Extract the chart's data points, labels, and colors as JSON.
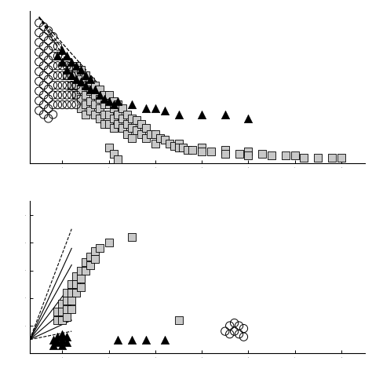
{
  "top_panel": {
    "circles_x": [
      1.5,
      1.5,
      1.5,
      1.5,
      1.5,
      1.5,
      1.5,
      1.5,
      1.5,
      1.5,
      1.6,
      1.6,
      1.6,
      1.6,
      1.6,
      1.6,
      1.6,
      1.6,
      1.6,
      1.6,
      1.7,
      1.7,
      1.7,
      1.7,
      1.7,
      1.7,
      1.7,
      1.7,
      1.7,
      1.7,
      1.8,
      1.8,
      1.8,
      1.8,
      1.8,
      1.8,
      1.8,
      1.8,
      1.8,
      1.9,
      1.9,
      1.9,
      1.9,
      1.9,
      1.9,
      1.9,
      2.0,
      2.0,
      2.0,
      2.0,
      2.0,
      2.0,
      2.1,
      2.1,
      2.1,
      2.1,
      2.1,
      2.2,
      2.2,
      2.2,
      2.2,
      2.3,
      2.3,
      2.3
    ],
    "circles_y": [
      9.2,
      8.7,
      8.2,
      7.7,
      7.2,
      6.7,
      6.2,
      5.7,
      5.2,
      4.7,
      9.0,
      8.5,
      8.0,
      7.5,
      7.0,
      6.5,
      6.0,
      5.5,
      5.0,
      4.5,
      8.8,
      8.3,
      7.8,
      7.3,
      6.8,
      6.3,
      5.8,
      5.3,
      4.8,
      4.3,
      8.5,
      8.0,
      7.5,
      7.0,
      6.5,
      6.0,
      5.5,
      5.0,
      4.5,
      8.0,
      7.5,
      7.0,
      6.5,
      6.0,
      5.5,
      5.0,
      7.5,
      7.0,
      6.5,
      6.0,
      5.5,
      5.0,
      7.0,
      6.5,
      6.0,
      5.5,
      5.0,
      6.5,
      6.0,
      5.5,
      5.0,
      6.0,
      5.5,
      5.0
    ],
    "triangles_x": [
      1.9,
      2.0,
      2.0,
      2.1,
      2.1,
      2.2,
      2.2,
      2.3,
      2.3,
      2.4,
      2.4,
      2.5,
      2.5,
      2.6,
      2.6,
      2.7,
      2.8,
      2.9,
      3.0,
      3.1,
      3.2,
      3.5,
      3.8,
      4.0,
      4.2,
      4.5,
      5.0,
      5.5,
      6.0
    ],
    "triangles_y": [
      7.5,
      7.8,
      7.2,
      7.5,
      6.8,
      7.2,
      6.5,
      7.0,
      6.3,
      6.8,
      6.2,
      6.5,
      6.0,
      6.3,
      5.8,
      5.8,
      5.5,
      5.3,
      5.2,
      5.0,
      5.2,
      5.0,
      4.8,
      4.8,
      4.7,
      4.5,
      4.5,
      4.5,
      4.3
    ],
    "squares_x": [
      2.1,
      2.1,
      2.2,
      2.2,
      2.2,
      2.3,
      2.3,
      2.3,
      2.3,
      2.4,
      2.4,
      2.4,
      2.4,
      2.4,
      2.5,
      2.5,
      2.5,
      2.5,
      2.5,
      2.6,
      2.6,
      2.6,
      2.6,
      2.7,
      2.7,
      2.7,
      2.7,
      2.8,
      2.8,
      2.8,
      2.8,
      2.9,
      2.9,
      2.9,
      2.9,
      3.0,
      3.0,
      3.0,
      3.0,
      3.1,
      3.1,
      3.1,
      3.1,
      3.2,
      3.2,
      3.2,
      3.3,
      3.3,
      3.3,
      3.4,
      3.4,
      3.4,
      3.5,
      3.5,
      3.5,
      3.6,
      3.6,
      3.7,
      3.7,
      3.8,
      3.8,
      3.9,
      4.0,
      4.0,
      4.1,
      4.2,
      4.3,
      4.4,
      4.5,
      4.5,
      4.6,
      4.7,
      4.8,
      5.0,
      5.0,
      5.2,
      5.5,
      5.5,
      5.8,
      6.0,
      6.0,
      6.3,
      6.5,
      6.8,
      7.0,
      7.2,
      7.5,
      7.8,
      8.0,
      3.0,
      3.1,
      3.2
    ],
    "squares_y": [
      7.2,
      6.5,
      7.0,
      6.5,
      6.0,
      7.0,
      6.5,
      6.0,
      5.5,
      6.8,
      6.3,
      5.8,
      5.3,
      4.8,
      6.5,
      6.0,
      5.5,
      5.0,
      4.5,
      6.2,
      5.7,
      5.2,
      4.7,
      6.0,
      5.5,
      5.0,
      4.5,
      5.8,
      5.3,
      4.8,
      4.3,
      5.5,
      5.0,
      4.5,
      4.0,
      5.5,
      5.0,
      4.5,
      4.0,
      5.2,
      4.8,
      4.3,
      3.8,
      5.0,
      4.5,
      4.0,
      4.8,
      4.3,
      3.8,
      4.5,
      4.0,
      3.5,
      4.3,
      3.8,
      3.3,
      4.2,
      3.7,
      4.0,
      3.5,
      3.8,
      3.3,
      3.5,
      3.5,
      3.0,
      3.3,
      3.2,
      3.0,
      2.9,
      3.0,
      2.8,
      2.8,
      2.7,
      2.7,
      2.8,
      2.6,
      2.6,
      2.7,
      2.5,
      2.5,
      2.6,
      2.4,
      2.5,
      2.4,
      2.4,
      2.4,
      2.3,
      2.3,
      2.3,
      2.3,
      2.8,
      2.5,
      2.2
    ],
    "dashed_lines": [
      {
        "x": [
          1.5,
          2.8
        ],
        "y": [
          9.5,
          6.0
        ]
      },
      {
        "x": [
          1.5,
          2.8
        ],
        "y": [
          9.5,
          5.2
        ]
      },
      {
        "x": [
          1.5,
          2.8
        ],
        "y": [
          9.5,
          4.5
        ]
      }
    ],
    "xlim": [
      1.3,
      8.5
    ],
    "ylim": [
      2.0,
      9.8
    ],
    "xticks": [
      1,
      2,
      3,
      4,
      5,
      6,
      7,
      8,
      9
    ],
    "yticks": []
  },
  "bottom_panel": {
    "circles_x": [
      5.5,
      5.6,
      5.6,
      5.7,
      5.7,
      5.8,
      5.8,
      5.9,
      5.9
    ],
    "circles_y": [
      1.8,
      2.0,
      1.7,
      2.1,
      1.8,
      2.0,
      1.7,
      1.9,
      1.6
    ],
    "triangles_x": [
      1.8,
      1.8,
      1.9,
      1.9,
      2.0,
      2.0,
      2.0,
      2.1,
      2.1,
      3.2,
      3.5,
      3.8,
      4.2
    ],
    "triangles_y": [
      1.5,
      1.3,
      1.6,
      1.4,
      1.7,
      1.5,
      1.3,
      1.6,
      1.4,
      1.5,
      1.5,
      1.5,
      1.5
    ],
    "squares_x": [
      1.9,
      1.9,
      2.0,
      2.0,
      2.0,
      2.1,
      2.1,
      2.1,
      2.1,
      2.2,
      2.2,
      2.2,
      2.2,
      2.3,
      2.3,
      2.3,
      2.4,
      2.4,
      2.4,
      2.5,
      2.5,
      2.6,
      2.6,
      2.7,
      2.7,
      2.8,
      3.0,
      3.5,
      4.5
    ],
    "squares_y": [
      2.5,
      2.2,
      2.8,
      2.5,
      2.2,
      3.2,
      2.9,
      2.6,
      2.3,
      3.5,
      3.2,
      2.9,
      2.6,
      3.8,
      3.5,
      3.2,
      4.0,
      3.7,
      3.4,
      4.3,
      4.0,
      4.5,
      4.2,
      4.7,
      4.4,
      4.8,
      5.0,
      5.2,
      2.2
    ],
    "solid_lines": [
      {
        "x": [
          1.3,
          2.2
        ],
        "y": [
          1.5,
          2.2
        ]
      },
      {
        "x": [
          1.3,
          2.2
        ],
        "y": [
          1.5,
          2.8
        ]
      },
      {
        "x": [
          1.3,
          2.2
        ],
        "y": [
          1.5,
          3.5
        ]
      },
      {
        "x": [
          1.3,
          2.2
        ],
        "y": [
          1.5,
          4.2
        ]
      },
      {
        "x": [
          1.3,
          2.2
        ],
        "y": [
          1.5,
          4.8
        ]
      }
    ],
    "dashed_lines": [
      {
        "x": [
          1.3,
          2.2
        ],
        "y": [
          1.5,
          1.8
        ]
      },
      {
        "x": [
          1.3,
          2.2
        ],
        "y": [
          1.5,
          5.5
        ]
      }
    ],
    "xlim": [
      1.3,
      8.5
    ],
    "ylim": [
      1.0,
      6.5
    ],
    "xticks": [
      1,
      2,
      3,
      4,
      5,
      6,
      7,
      8,
      9
    ],
    "yticks": []
  },
  "marker_size": 55,
  "square_color": "#c8c8c8",
  "triangle_color": "#000000",
  "circle_facecolor": "none",
  "circle_edgecolor": "#000000",
  "bg_color": "#ffffff",
  "line_color": "#000000"
}
